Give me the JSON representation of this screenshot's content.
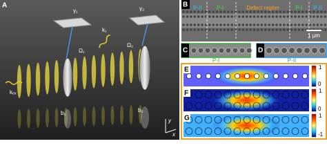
{
  "panel_a": {
    "label": "A",
    "gamma1": "γ₁",
    "gamma2": "γ₂",
    "k1": "k₁",
    "omega1": "Ω₁",
    "omega2": "Ω₂",
    "kex": "kₑₓ",
    "b1": "b₁",
    "b2": "b₂",
    "axis_y": "y",
    "axis_x": "x"
  },
  "panel_b": {
    "label": "B",
    "regions": [
      "P-II",
      "P-I",
      "Defect region",
      "P-I",
      "P-II"
    ],
    "scale": "1 μm"
  },
  "panel_c": {
    "label": "C",
    "caption": "P-I"
  },
  "panel_d": {
    "label": "D",
    "caption": "P-II"
  },
  "panel_e": {
    "label": "E",
    "cbar_max": "1",
    "cbar_min": "0"
  },
  "panel_f": {
    "label": "F",
    "cbar_max": "1",
    "cbar_min": "0"
  },
  "panel_g": {
    "label": "G",
    "cbar_max": "1",
    "cbar_min": "-1"
  }
}
